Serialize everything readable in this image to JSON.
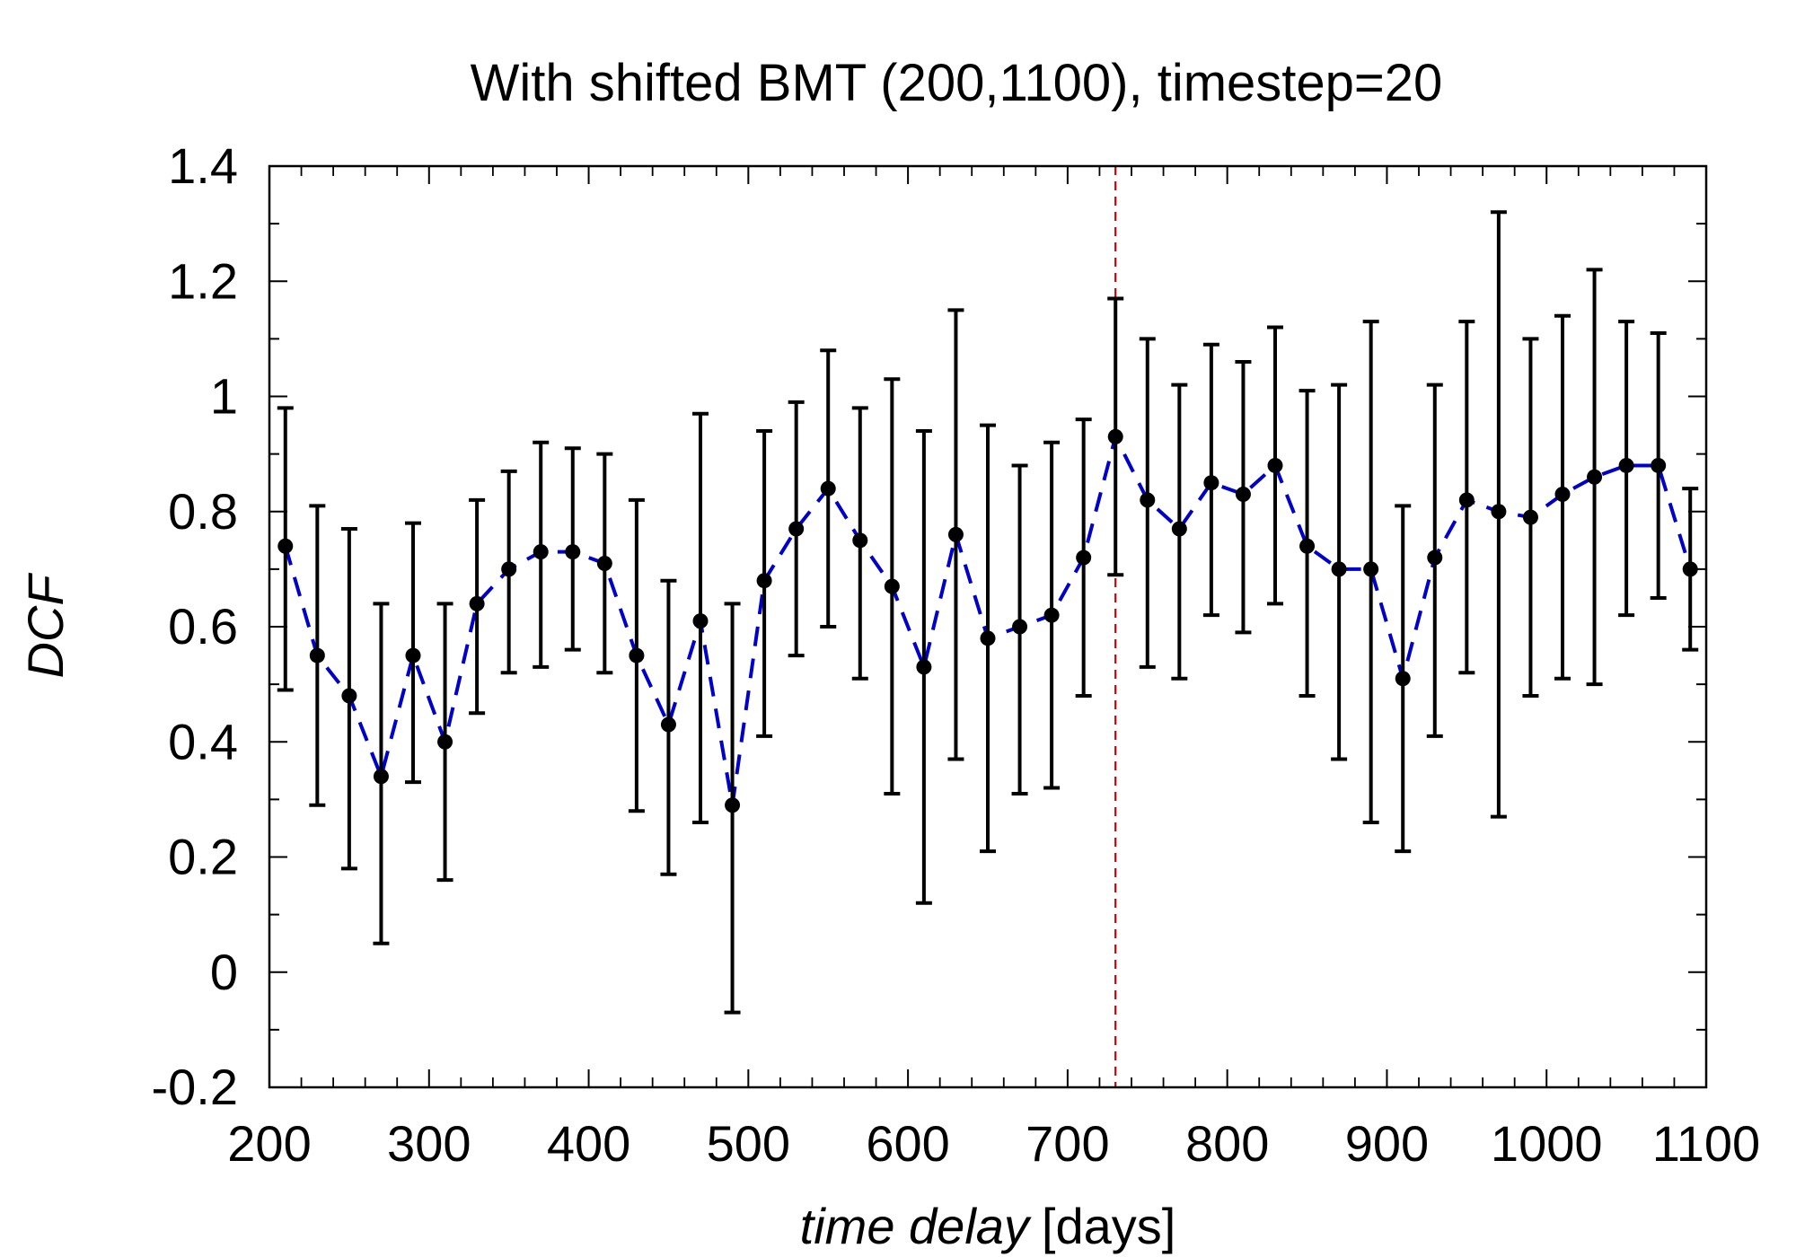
{
  "chart_data": {
    "type": "scatter",
    "title": "With shifted BMT (200,1100), timestep=20",
    "xlabel_italic": "time delay",
    "xlabel_units": "[days]",
    "ylabel": "DCF",
    "xlim": [
      200,
      1100
    ],
    "ylim": [
      -0.2,
      1.4
    ],
    "x_ticks": [
      200,
      300,
      400,
      500,
      600,
      700,
      800,
      900,
      1000,
      1100
    ],
    "x_tick_labels": [
      "200",
      "300",
      "400",
      "500",
      "600",
      "700",
      "800",
      "900",
      "1000",
      "1100"
    ],
    "y_ticks": [
      -0.2,
      0,
      0.2,
      0.4,
      0.6,
      0.8,
      1,
      1.2,
      1.4
    ],
    "y_tick_labels": [
      "-0.2",
      "0",
      "0.2",
      "0.4",
      "0.6",
      "0.8",
      "1",
      "1.2",
      "1.4"
    ],
    "grid": false,
    "reference_line": {
      "x": 730,
      "color": "#cc0000",
      "style": "dashed"
    },
    "series": [
      {
        "name": "DCF",
        "marker_color": "#000000",
        "errorbar_color": "#000000",
        "line_color": "#0000cc",
        "line_style": "dashed",
        "x": [
          210,
          230,
          250,
          270,
          290,
          310,
          330,
          350,
          370,
          390,
          410,
          430,
          450,
          470,
          490,
          510,
          530,
          550,
          570,
          590,
          610,
          630,
          650,
          670,
          690,
          710,
          730,
          750,
          770,
          790,
          810,
          830,
          850,
          870,
          890,
          910,
          930,
          950,
          970,
          990,
          1010,
          1030,
          1050,
          1070,
          1090
        ],
        "y": [
          0.74,
          0.55,
          0.48,
          0.34,
          0.55,
          0.4,
          0.64,
          0.7,
          0.73,
          0.73,
          0.71,
          0.55,
          0.43,
          0.61,
          0.29,
          0.68,
          0.77,
          0.84,
          0.75,
          0.67,
          0.53,
          0.76,
          0.58,
          0.6,
          0.62,
          0.72,
          0.93,
          0.82,
          0.77,
          0.85,
          0.83,
          0.88,
          0.74,
          0.7,
          0.7,
          0.51,
          0.72,
          0.82,
          0.8,
          0.79,
          0.83,
          0.86,
          0.88,
          0.88,
          0.7
        ],
        "y_low": [
          0.49,
          0.29,
          0.18,
          0.05,
          0.33,
          0.16,
          0.45,
          0.52,
          0.53,
          0.56,
          0.52,
          0.28,
          0.17,
          0.26,
          -0.07,
          0.41,
          0.55,
          0.6,
          0.51,
          0.31,
          0.12,
          0.37,
          0.21,
          0.31,
          0.32,
          0.48,
          0.69,
          0.53,
          0.51,
          0.62,
          0.59,
          0.64,
          0.48,
          0.37,
          0.26,
          0.21,
          0.41,
          0.52,
          0.27,
          0.48,
          0.51,
          0.5,
          0.62,
          0.65,
          0.56
        ],
        "y_high": [
          0.98,
          0.81,
          0.77,
          0.64,
          0.78,
          0.64,
          0.82,
          0.87,
          0.92,
          0.91,
          0.9,
          0.82,
          0.68,
          0.97,
          0.64,
          0.94,
          0.99,
          1.08,
          0.98,
          1.03,
          0.94,
          1.15,
          0.95,
          0.88,
          0.92,
          0.96,
          1.17,
          1.1,
          1.02,
          1.09,
          1.06,
          1.12,
          1.01,
          1.02,
          1.13,
          0.81,
          1.02,
          1.13,
          1.32,
          1.1,
          1.14,
          1.22,
          1.13,
          1.11,
          0.84
        ]
      }
    ]
  }
}
